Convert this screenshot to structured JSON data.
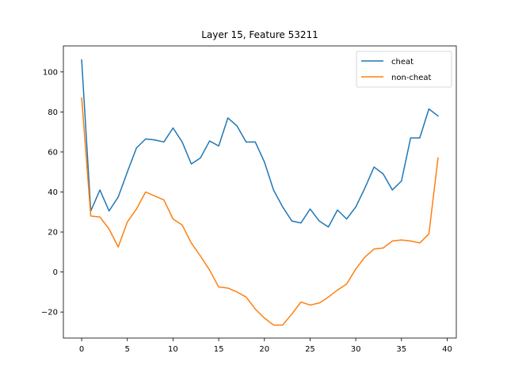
{
  "chart_data": {
    "type": "line",
    "title": "Layer 15, Feature 53211",
    "xlabel": "",
    "ylabel": "",
    "xlim": [
      -2,
      41
    ],
    "ylim": [
      -33,
      113
    ],
    "xticks": [
      0,
      5,
      10,
      15,
      20,
      25,
      30,
      35,
      40
    ],
    "yticks": [
      -20,
      0,
      20,
      40,
      60,
      80,
      100
    ],
    "ytick_labels": [
      "−20",
      "0",
      "20",
      "40",
      "60",
      "80",
      "100"
    ],
    "grid": false,
    "legend_position": "top-right",
    "x": [
      0,
      1,
      2,
      3,
      4,
      5,
      6,
      7,
      8,
      9,
      10,
      11,
      12,
      13,
      14,
      15,
      16,
      17,
      18,
      19,
      20,
      21,
      22,
      23,
      24,
      25,
      26,
      27,
      28,
      29,
      30,
      31,
      32,
      33,
      34,
      35,
      36,
      37,
      38,
      39
    ],
    "series": [
      {
        "name": "cheat",
        "color": "#1f77b4",
        "values": [
          106,
          30.5,
          41,
          30.5,
          37.5,
          50,
          62,
          66.5,
          66,
          65,
          72,
          65,
          54,
          57,
          65.5,
          63,
          77,
          73,
          65,
          65,
          55,
          41,
          32.5,
          25.5,
          24.5,
          31.5,
          25.5,
          22.5,
          31,
          26.5,
          32.5,
          42,
          52.5,
          49,
          41,
          45.5,
          67,
          67,
          81.5,
          78
        ]
      },
      {
        "name": "non-cheat",
        "color": "#ff7f0e",
        "values": [
          87,
          28,
          27.5,
          21.5,
          12.5,
          25,
          31.5,
          40,
          38,
          36,
          26.5,
          23.5,
          14.5,
          8,
          1,
          -7.5,
          -8,
          -10,
          -12.5,
          -18.5,
          -23,
          -26.5,
          -26.5,
          -21,
          -15,
          -16.5,
          -15.5,
          -12.5,
          -9,
          -6,
          1.5,
          7.5,
          11.5,
          12,
          15.5,
          16,
          15.5,
          14.5,
          19,
          57
        ]
      }
    ]
  }
}
